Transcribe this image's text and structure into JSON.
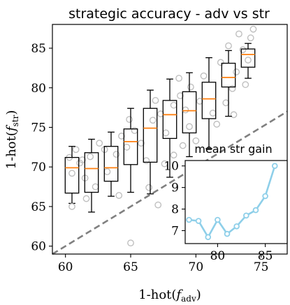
{
  "chart_data": [
    {
      "type": "box",
      "title": "strategic accuracy - adv vs str",
      "xlabel": "1-hot(f_adv)",
      "ylabel": "1-hot(f_str)",
      "xlim": [
        59,
        77
      ],
      "ylim": [
        59,
        88
      ],
      "xticks": [
        60,
        65,
        70,
        75
      ],
      "yticks": [
        60,
        65,
        70,
        75,
        80,
        85
      ],
      "diagonal_reference_line": true,
      "colors": {
        "box": "#000000",
        "median": "#ff7f0e",
        "outlier": "#bfbfbf",
        "diagonal": "#808080"
      },
      "boxes": [
        {
          "x": 60.5,
          "whislo": 65.4,
          "q1": 66.7,
          "med": 69.9,
          "q3": 71.2,
          "whishi": 72.6,
          "fliers": [
            65.0
          ]
        },
        {
          "x": 62.0,
          "whislo": 64.3,
          "q1": 66.8,
          "med": 69.8,
          "q3": 71.8,
          "whishi": 73.5,
          "fliers": []
        },
        {
          "x": 63.5,
          "whislo": 66.3,
          "q1": 68.2,
          "med": 69.9,
          "q3": 72.6,
          "whishi": 74.4,
          "fliers": []
        },
        {
          "x": 65.0,
          "whislo": 66.8,
          "q1": 70.3,
          "med": 73.2,
          "q3": 74.8,
          "whishi": 77.4,
          "fliers": [
            60.4
          ]
        },
        {
          "x": 66.5,
          "whislo": 66.6,
          "q1": 70.6,
          "med": 74.9,
          "q3": 77.4,
          "whishi": 79.7,
          "fliers": []
        },
        {
          "x": 68.0,
          "whislo": 68.7,
          "q1": 73.6,
          "med": 76.6,
          "q3": 78.4,
          "whishi": 81.1,
          "fliers": []
        },
        {
          "x": 69.5,
          "whislo": 71.3,
          "q1": 74.3,
          "med": 77.1,
          "q3": 79.5,
          "whishi": 81.9,
          "fliers": []
        },
        {
          "x": 71.0,
          "whislo": 72.3,
          "q1": 76.1,
          "med": 78.6,
          "q3": 80.7,
          "whishi": 83.8,
          "fliers": []
        },
        {
          "x": 72.5,
          "whislo": 76.4,
          "q1": 80.1,
          "med": 81.3,
          "q3": 83.1,
          "whishi": 84.7,
          "fliers": []
        },
        {
          "x": 74.0,
          "whislo": 81.2,
          "q1": 82.6,
          "med": 84.2,
          "q3": 84.9,
          "whishi": 85.6,
          "fliers": []
        }
      ],
      "scatter_points": [
        [
          60.3,
          71.2
        ],
        [
          60.5,
          69.2
        ],
        [
          60.8,
          72.2
        ],
        [
          61.1,
          70.5
        ],
        [
          61.5,
          68.6
        ],
        [
          61.3,
          70.9
        ],
        [
          61.9,
          71.3
        ],
        [
          62.3,
          67.5
        ],
        [
          62.6,
          73.0
        ],
        [
          63.2,
          69.4
        ],
        [
          63.9,
          71.6
        ],
        [
          64.3,
          73.9
        ],
        [
          64.1,
          66.4
        ],
        [
          64.7,
          72.5
        ],
        [
          64.9,
          76.0
        ],
        [
          65.3,
          74.6
        ],
        [
          65.8,
          73.0
        ],
        [
          66.2,
          70.8
        ],
        [
          66.4,
          67.4
        ],
        [
          66.7,
          75.9
        ],
        [
          66.9,
          78.4
        ],
        [
          67.3,
          76.7
        ],
        [
          67.7,
          74.3
        ],
        [
          67.1,
          65.2
        ],
        [
          67.6,
          70.4
        ],
        [
          68.3,
          77.8
        ],
        [
          68.8,
          79.0
        ],
        [
          68.7,
          81.2
        ],
        [
          69.2,
          77.2
        ],
        [
          69.5,
          75.1
        ],
        [
          69.6,
          80.1
        ],
        [
          70.3,
          78.3
        ],
        [
          70.6,
          81.5
        ],
        [
          71.3,
          76.8
        ],
        [
          71.9,
          83.2
        ],
        [
          72.3,
          78.1
        ],
        [
          72.8,
          79.9
        ],
        [
          72.5,
          85.3
        ],
        [
          73.1,
          82.0
        ],
        [
          73.6,
          84.8
        ],
        [
          74.0,
          83.5
        ],
        [
          74.2,
          86.3
        ],
        [
          73.3,
          86.8
        ],
        [
          74.4,
          87.4
        ],
        [
          73.8,
          80.4
        ],
        [
          72.9,
          76.6
        ],
        [
          71.6,
          75.4
        ],
        [
          70.0,
          73.3
        ],
        [
          69.0,
          72.7
        ],
        [
          68.3,
          71.5
        ],
        [
          63.0,
          72.2
        ],
        [
          61.6,
          66.0
        ]
      ]
    },
    {
      "type": "line",
      "title": "mean str gain",
      "x": [
        77,
        79,
        81,
        83,
        85,
        87
      ],
      "xticks": [
        80,
        85
      ],
      "yticks": [
        7,
        8,
        9,
        10
      ],
      "xlim": [
        76.6,
        87.3
      ],
      "ylim": [
        6.4,
        10.25
      ],
      "color": "#8ecfe9",
      "points": [
        [
          77.0,
          7.5
        ],
        [
          78.0,
          7.45
        ],
        [
          79.0,
          6.7
        ],
        [
          80.0,
          7.5
        ],
        [
          81.0,
          6.85
        ],
        [
          82.0,
          7.2
        ],
        [
          83.0,
          7.7
        ],
        [
          84.0,
          7.95
        ],
        [
          85.0,
          8.6
        ],
        [
          86.0,
          10.0
        ]
      ]
    }
  ]
}
